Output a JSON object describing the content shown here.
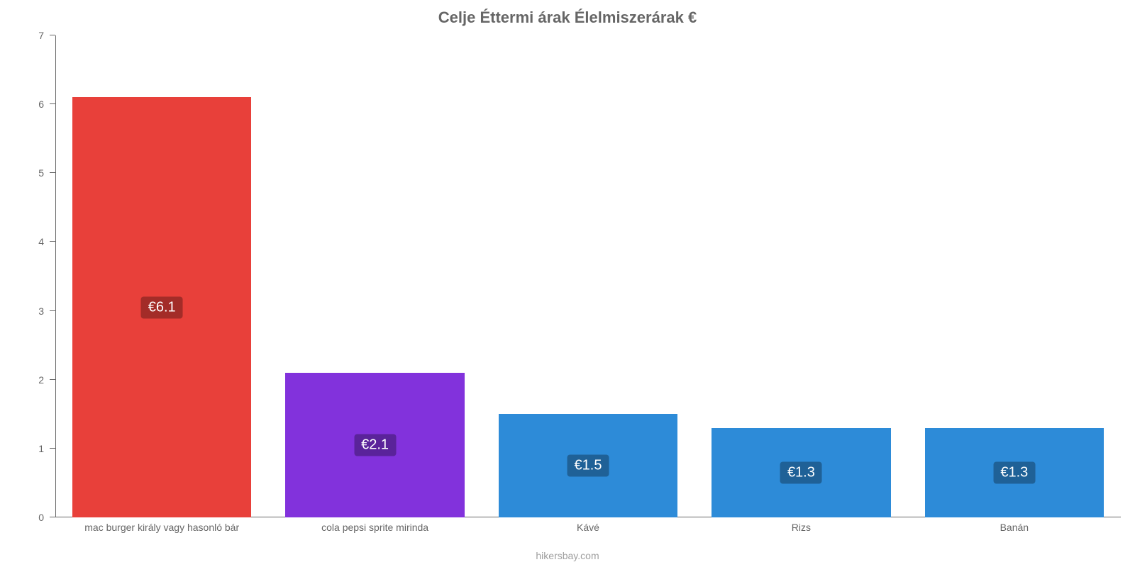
{
  "chart": {
    "type": "bar",
    "title": "Celje Éttermi árak Élelmiszerárak €",
    "title_fontsize": 22,
    "title_color": "#666666",
    "attribution": "hikersbay.com",
    "attribution_fontsize": 14,
    "attribution_color": "#9e9e9e",
    "background_color": "#ffffff",
    "y": {
      "min": 0,
      "max": 7,
      "ticks": [
        0,
        1,
        2,
        3,
        4,
        5,
        6,
        7
      ],
      "tick_fontsize": 14,
      "tick_color": "#666666",
      "axis_line_color": "#666666"
    },
    "x": {
      "label_fontsize": 14,
      "label_color": "#666666",
      "axis_line_color": "#666666"
    },
    "value_label": {
      "fontsize": 20,
      "text_color": "#ffffff",
      "border_radius": 4,
      "padding": "4px 10px"
    },
    "bar_width_ratio": 0.84,
    "categories": [
      "mac burger király vagy hasonló bár",
      "cola pepsi sprite mirinda",
      "Kávé",
      "Rizs",
      "Banán"
    ],
    "values": [
      6.1,
      2.1,
      1.5,
      1.3,
      1.3
    ],
    "value_labels": [
      "€6.1",
      "€2.1",
      "€1.5",
      "€1.3",
      "€1.3"
    ],
    "bar_colors": [
      "#e8403a",
      "#8232dc",
      "#2d8bd8",
      "#2d8bd8",
      "#2d8bd8"
    ],
    "badge_colors": [
      "#a32c28",
      "#5a239a",
      "#1f6197",
      "#1f6197",
      "#1f6197"
    ]
  }
}
